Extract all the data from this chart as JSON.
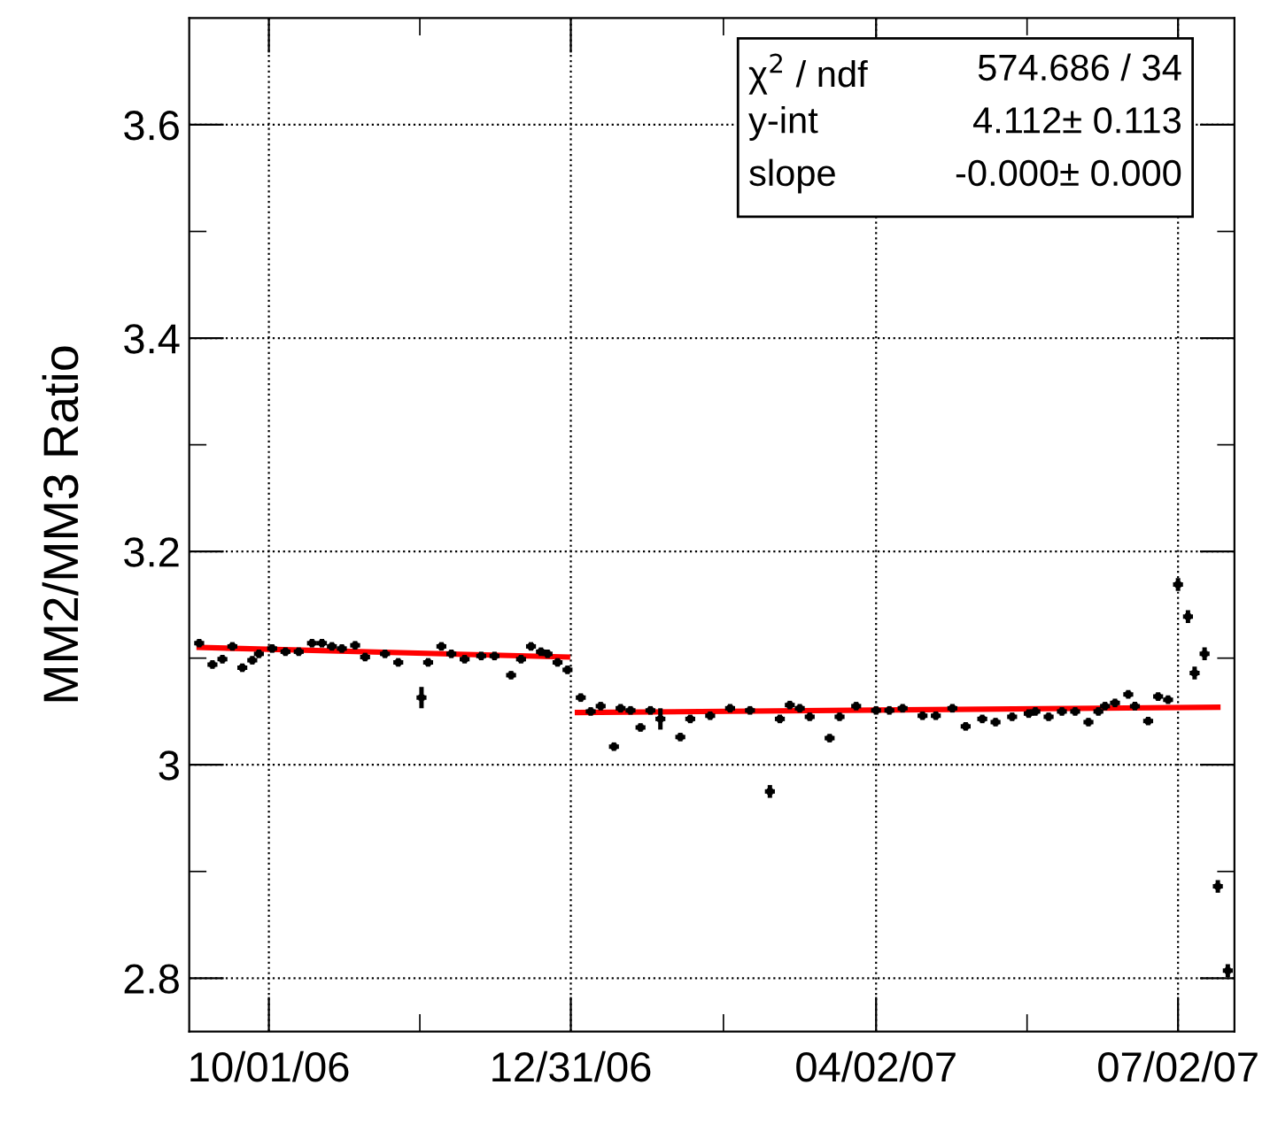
{
  "chart_data": {
    "type": "scatter",
    "ylabel": "MM2/MM3 Ratio",
    "xlim": [
      "2006-09-07",
      "2007-07-19"
    ],
    "ylim": [
      2.75,
      3.7
    ],
    "xticks": [
      {
        "value": "2006-10-01",
        "label": "10/01/06"
      },
      {
        "value": "2006-12-31",
        "label": "12/31/06"
      },
      {
        "value": "2007-04-02",
        "label": "04/02/07"
      },
      {
        "value": "2007-07-02",
        "label": "07/02/07"
      }
    ],
    "yticks": [
      2.8,
      3,
      3.2,
      3.4,
      3.6
    ],
    "grid": true,
    "annotations": [
      "χ$^{2}$ / ndf",
      "574.686 / 34",
      "y-int",
      "4.112± 0.113",
      "slope",
      "-0.000± 0.000"
    ],
    "series": [
      {
        "color": "#000000",
        "marker": "square",
        "x": [
          "2006-09-10",
          "2006-09-14",
          "2006-09-17",
          "2006-09-20",
          "2006-09-23",
          "2006-09-26",
          "2006-09-28",
          "2006-10-02",
          "2006-10-06",
          "2006-10-10",
          "2006-10-14",
          "2006-10-17",
          "2006-10-20",
          "2006-10-23",
          "2006-10-27",
          "2006-10-30",
          "2006-11-05",
          "2006-11-09",
          "2006-11-16",
          "2006-11-18",
          "2006-11-22",
          "2006-11-25",
          "2006-11-29",
          "2006-12-04",
          "2006-12-08",
          "2006-12-13",
          "2006-12-16",
          "2006-12-19",
          "2006-12-22",
          "2006-12-24",
          "2006-12-27",
          "2006-12-30",
          "2007-01-03",
          "2007-01-06",
          "2007-01-09",
          "2007-01-13",
          "2007-01-15",
          "2007-01-18",
          "2007-01-21",
          "2007-01-24",
          "2007-01-27",
          "2007-02-02",
          "2007-02-05",
          "2007-02-11",
          "2007-02-17",
          "2007-02-23",
          "2007-03-01",
          "2007-03-04",
          "2007-03-07",
          "2007-03-10",
          "2007-03-13",
          "2007-03-19",
          "2007-03-22",
          "2007-03-27",
          "2007-04-02",
          "2007-04-06",
          "2007-04-10",
          "2007-04-16",
          "2007-04-20",
          "2007-04-25",
          "2007-04-29",
          "2007-05-04",
          "2007-05-08",
          "2007-05-13",
          "2007-05-18",
          "2007-05-20",
          "2007-05-24",
          "2007-05-28",
          "2007-06-01",
          "2007-06-05",
          "2007-06-08",
          "2007-06-10",
          "2007-06-13",
          "2007-06-17",
          "2007-06-19",
          "2007-06-23",
          "2007-06-26",
          "2007-06-29",
          "2007-07-02",
          "2007-07-05",
          "2007-07-07",
          "2007-07-10",
          "2007-07-14",
          "2007-07-17"
        ],
        "values": [
          3.114,
          3.094,
          3.099,
          3.111,
          3.091,
          3.098,
          3.104,
          3.109,
          3.106,
          3.106,
          3.114,
          3.114,
          3.111,
          3.109,
          3.112,
          3.101,
          3.104,
          3.096,
          3.063,
          3.096,
          3.111,
          3.104,
          3.099,
          3.102,
          3.102,
          3.084,
          3.099,
          3.111,
          3.106,
          3.104,
          3.096,
          3.089,
          3.063,
          3.05,
          3.055,
          3.017,
          3.053,
          3.051,
          3.035,
          3.051,
          3.043,
          3.026,
          3.043,
          3.046,
          3.053,
          3.051,
          2.975,
          3.043,
          3.056,
          3.053,
          3.045,
          3.025,
          3.045,
          3.055,
          3.051,
          3.051,
          3.053,
          3.046,
          3.046,
          3.053,
          3.036,
          3.043,
          3.04,
          3.045,
          3.048,
          3.05,
          3.045,
          3.05,
          3.05,
          3.04,
          3.05,
          3.055,
          3.058,
          3.066,
          3.055,
          3.041,
          3.064,
          3.061,
          3.169,
          3.139,
          3.086,
          3.104,
          2.886,
          2.807
        ],
        "errors": [
          0.004,
          0.004,
          0.004,
          0.004,
          0.004,
          0.004,
          0.004,
          0.004,
          0.004,
          0.004,
          0.004,
          0.004,
          0.004,
          0.004,
          0.004,
          0.004,
          0.004,
          0.004,
          0.01,
          0.004,
          0.004,
          0.004,
          0.004,
          0.004,
          0.004,
          0.004,
          0.004,
          0.004,
          0.004,
          0.004,
          0.004,
          0.004,
          0.004,
          0.004,
          0.004,
          0.004,
          0.004,
          0.004,
          0.004,
          0.004,
          0.01,
          0.004,
          0.004,
          0.004,
          0.004,
          0.004,
          0.006,
          0.004,
          0.004,
          0.004,
          0.004,
          0.004,
          0.004,
          0.004,
          0.004,
          0.004,
          0.004,
          0.004,
          0.004,
          0.004,
          0.004,
          0.004,
          0.004,
          0.004,
          0.004,
          0.004,
          0.004,
          0.004,
          0.004,
          0.004,
          0.004,
          0.004,
          0.004,
          0.004,
          0.004,
          0.004,
          0.004,
          0.004,
          0.006,
          0.006,
          0.006,
          0.006,
          0.006,
          0.006
        ],
        "xerrors": [
          1.5,
          1.5,
          1.5,
          1.5,
          1.5,
          1.5,
          1.5,
          1.5,
          1.5,
          1.5,
          1.5,
          1.5,
          1.5,
          1.5,
          1.5,
          1.5,
          1.5,
          1.5,
          1.5,
          1.5,
          1.5,
          1.5,
          1.5,
          1.5,
          1.5,
          1.5,
          1.5,
          1.5,
          1.5,
          1.5,
          1.5,
          1.5,
          1.5,
          1.5,
          1.5,
          1.5,
          1.5,
          1.5,
          1.5,
          1.5,
          1.5,
          1.5,
          1.5,
          1.5,
          1.5,
          1.5,
          1.5,
          1.5,
          1.5,
          1.5,
          1.5,
          1.5,
          1.5,
          1.5,
          1.5,
          1.5,
          1.5,
          1.5,
          1.5,
          1.5,
          1.5,
          1.5,
          1.5,
          1.5,
          1.5,
          1.5,
          1.5,
          1.5,
          1.5,
          1.5,
          1.5,
          1.5,
          1.5,
          1.5,
          1.5,
          1.5,
          1.5,
          1.5,
          1.5,
          1.5,
          1.5,
          1.5,
          1.5,
          1.5
        ]
      },
      {
        "type": "line",
        "color": "#ff0000",
        "x": [
          "2006-09-10",
          "2006-12-30"
        ],
        "values": [
          3.11,
          3.101
        ]
      },
      {
        "type": "line",
        "color": "#ff0000",
        "x": [
          "2007-01-02",
          "2007-07-14"
        ],
        "values": [
          3.049,
          3.054
        ]
      }
    ]
  }
}
